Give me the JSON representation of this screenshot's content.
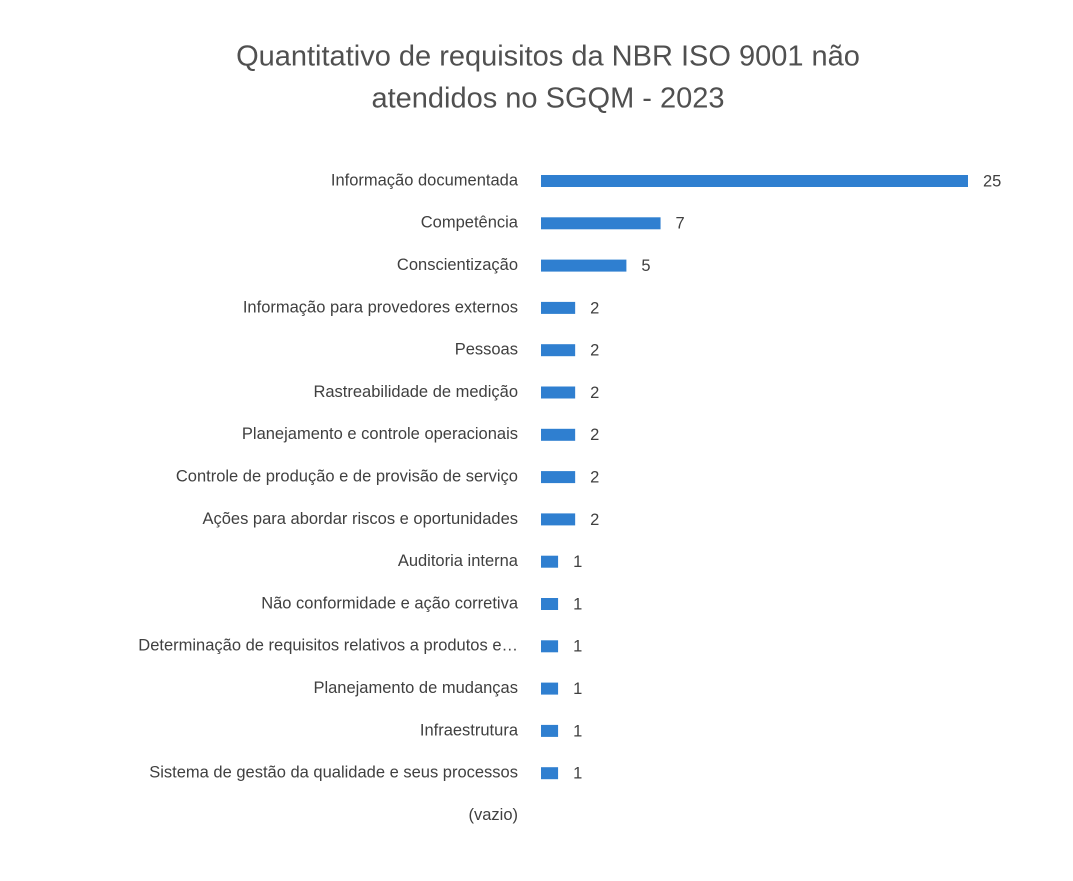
{
  "chart_data": {
    "type": "bar",
    "orientation": "horizontal",
    "title": [
      "Quantitativo de requisitos da NBR ISO 9001 não",
      "atendidos no SGQM - 2023"
    ],
    "categories": [
      "Informação documentada",
      "Competência",
      "Conscientização",
      "Informação para provedores externos",
      "Pessoas",
      "Rastreabilidade de medição",
      "Planejamento e controle operacionais",
      "Controle de produção e de provisão de serviço",
      "Ações para abordar riscos e oportunidades",
      "Auditoria interna",
      "Não conformidade e ação corretiva",
      "Determinação de requisitos relativos a produtos e…",
      "Planejamento de mudanças",
      "Infraestrutura",
      "Sistema de gestão da qualidade e seus processos",
      "(vazio)"
    ],
    "values": [
      25,
      7,
      5,
      2,
      2,
      2,
      2,
      2,
      2,
      1,
      1,
      1,
      1,
      1,
      1,
      null
    ],
    "color": "#2f7fd0"
  }
}
